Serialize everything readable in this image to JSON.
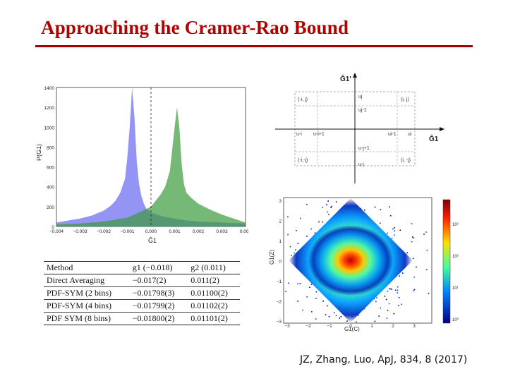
{
  "slide": {
    "title": "Approaching the Cramer-Rao Bound",
    "citation": "JZ, Zhang, Luo, ApJ, 834, 8 (2017)"
  },
  "colors": {
    "title": "#b00000",
    "rule": "#a00000",
    "blue_hist": "#7070f0",
    "green_hist": "#3c9a3c"
  },
  "histogram": {
    "ylabel": "P(Ĝ1)",
    "xlabel": "Ĝ1",
    "yticks": [
      "0",
      "200",
      "400",
      "600",
      "800",
      "1000",
      "1200",
      "1400"
    ],
    "xticks": [
      "−0.004",
      "−0.003",
      "−0.002",
      "−0.001",
      "0.000",
      "0.001",
      "0.002",
      "0.003",
      "0.004"
    ]
  },
  "chart_data": [
    {
      "type": "bar",
      "xlabel": "Ĝ1",
      "ylabel": "P(Ĝ1)",
      "xlim": [
        -0.004,
        0.004
      ],
      "ylim": [
        0,
        1400
      ],
      "series": [
        {
          "x": [
            -0.004,
            -0.0035,
            -0.003,
            -0.0025,
            -0.002,
            -0.0017,
            -0.0015,
            -0.0013,
            -0.0011,
            -0.001,
            -0.0009,
            -0.0008,
            -0.0007,
            -0.0006,
            -0.0005,
            -0.0004,
            -0.0003,
            -0.0002,
            0.0,
            0.0005,
            0.001,
            0.0015,
            0.002,
            0.003,
            0.004
          ],
          "values": [
            40,
            60,
            80,
            110,
            160,
            210,
            260,
            340,
            480,
            700,
            1000,
            1400,
            1100,
            650,
            420,
            300,
            230,
            180,
            140,
            100,
            80,
            60,
            50,
            40,
            30
          ]
        },
        {
          "x": [
            -0.004,
            -0.003,
            -0.002,
            -0.001,
            -0.0005,
            0.0,
            0.0002,
            0.0004,
            0.0006,
            0.0008,
            0.0009,
            0.001,
            0.0011,
            0.0012,
            0.0013,
            0.0014,
            0.0015,
            0.0017,
            0.002,
            0.0025,
            0.003,
            0.0035,
            0.004
          ],
          "values": [
            20,
            30,
            50,
            90,
            140,
            200,
            260,
            320,
            400,
            560,
            780,
            1000,
            1200,
            1000,
            620,
            420,
            340,
            290,
            230,
            170,
            120,
            80,
            40
          ]
        }
      ]
    },
    {
      "type": "heatmap",
      "xlabel": "G1(C)",
      "ylabel": "G1(Z)",
      "xticks": [
        "−3",
        "−2",
        "−1",
        "0",
        "1",
        "2",
        "3"
      ],
      "yticks": [
        "3",
        "2",
        "1",
        "0",
        "−1",
        "−2",
        "−3"
      ],
      "colorbar_ticks": [
        "10³",
        "10²",
        "10¹",
        "10⁰"
      ]
    }
  ],
  "grid_diagram": {
    "axis_vertical": "Ĝ1'",
    "axis_horizontal": "Ĝ1",
    "cells": {
      "top_left": "(-i, j)",
      "top_right": "(i, j)",
      "bottom_left": "(-i,-j)",
      "bottom_right": "(i, -j)",
      "u_j": "uj",
      "u_j1": "uj-1",
      "u_mi": "u-i",
      "u_mi1": "u-i+1",
      "u_i1": "ui-1",
      "u_i": "ui",
      "u_mj1": "u-j+1",
      "u_mj": "u-j"
    }
  },
  "table": {
    "headers": [
      "Method",
      "g1 (−0.018)",
      "g2 (0.011)"
    ],
    "rows": [
      [
        "Direct Averaging",
        "−0.017(2)",
        "0.011(2)"
      ],
      [
        "PDF-SYM (2 bins)",
        "−0.01798(3)",
        "0.01100(2)"
      ],
      [
        "PDF-SYM (4 bins)",
        "−0.01799(2)",
        "0.01102(2)"
      ],
      [
        "PDF SYM (8 bins)",
        "−0.01800(2)",
        "0.01101(2)"
      ]
    ]
  }
}
